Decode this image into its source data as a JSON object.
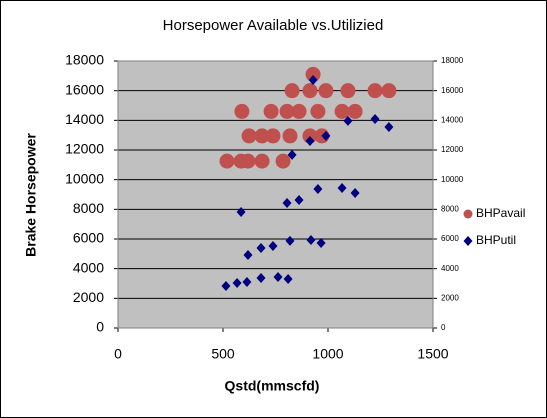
{
  "chart_data": {
    "type": "scatter",
    "title": "Horsepower Available vs.Utilizied",
    "x_label": "Qstd(mmscfd)",
    "y_label": "Brake Horsepower",
    "xlim": [
      0,
      1500
    ],
    "xticks": [
      0,
      500,
      1000,
      1500
    ],
    "ylim": [
      0,
      18000
    ],
    "yticks": [
      0,
      2000,
      4000,
      6000,
      8000,
      10000,
      12000,
      14000,
      16000,
      18000
    ],
    "y2lim": [
      0,
      18000
    ],
    "y2ticks": [
      0,
      2000,
      4000,
      6000,
      8000,
      10000,
      12000,
      14000,
      16000,
      18000
    ],
    "grid": true,
    "legend": "right",
    "series": [
      {
        "name": "BHPavail",
        "color": "#c0504d",
        "marker": "circle",
        "x": [
          519,
          586,
          619,
          686,
          786,
          624,
          686,
          738,
          819,
          914,
          971,
          590,
          729,
          805,
          862,
          952,
          1067,
          1129,
          829,
          914,
          990,
          1095,
          1224,
          1290,
          929
        ],
        "values": [
          11250,
          11250,
          11250,
          11250,
          11250,
          12950,
          12950,
          12950,
          12950,
          12950,
          12950,
          14600,
          14600,
          14600,
          14600,
          14600,
          14600,
          14600,
          16000,
          16000,
          16000,
          16000,
          16000,
          16000,
          17100
        ]
      },
      {
        "name": "BHPutil",
        "color": "#000080",
        "marker": "diamond",
        "axis": "y2",
        "x": [
          514,
          567,
          614,
          681,
          762,
          810,
          619,
          681,
          738,
          819,
          919,
          967,
          586,
          805,
          862,
          952,
          1067,
          1129,
          829,
          914,
          990,
          1095,
          1224,
          1290,
          929
        ],
        "values": [
          2830,
          3030,
          3100,
          3370,
          3440,
          3300,
          4920,
          5390,
          5530,
          5870,
          5930,
          5730,
          7820,
          8430,
          8630,
          9370,
          9440,
          9100,
          11670,
          12610,
          12950,
          13960,
          14090,
          13550,
          16720
        ]
      }
    ]
  }
}
